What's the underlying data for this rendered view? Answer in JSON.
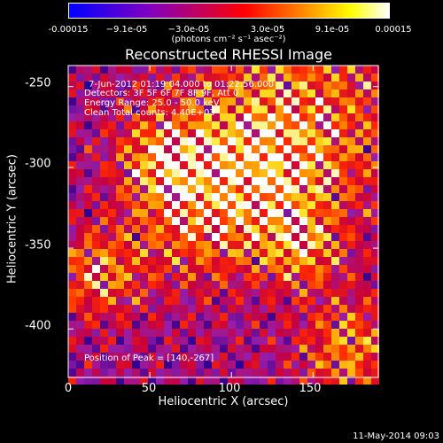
{
  "colorbar": {
    "tick_labels": [
      "-0.00015",
      "−9.1e-05",
      "−3.0e-05",
      "3.0e-05",
      "9.1e-05",
      "0.00015"
    ],
    "unit_label": "(photons cm⁻² s⁻¹ asec⁻²)",
    "range": [
      -0.00015,
      0.00015
    ],
    "colors": [
      "#0000ff",
      "#ff0000",
      "#ffff00",
      "#ffffff"
    ]
  },
  "title": "Reconstructed RHESSI Image",
  "annotations": {
    "time_range": "7-Jun-2012 01:19:04.000 to 01:22:56.000",
    "detectors": "Detectors: 3F 5F 6F 7F 8F 9F, Att 0",
    "energy_range": "Energy Range: 25.0 - 50.0 keV",
    "method_counts": "Clean    Total counts: 4.40E+03",
    "peak_position": "Position of Peak = [140,-267]"
  },
  "timestamp": "11-May-2014 09:03",
  "chart_data": {
    "type": "heatmap",
    "title": "Reconstructed RHESSI Image",
    "xlabel": "Heliocentric X (arcsec)",
    "ylabel": "Heliocentric Y (arcsec)",
    "xlim": [
      0,
      190
    ],
    "ylim": [
      -430,
      -237
    ],
    "x_ticks": [
      0,
      50,
      100,
      150
    ],
    "y_ticks": [
      -250,
      -300,
      -350,
      -400
    ],
    "colorscale": "blue-purple-red-yellow-white",
    "value_range": [
      -0.00015,
      0.00015
    ],
    "peak": [
      140,
      -267
    ]
  }
}
